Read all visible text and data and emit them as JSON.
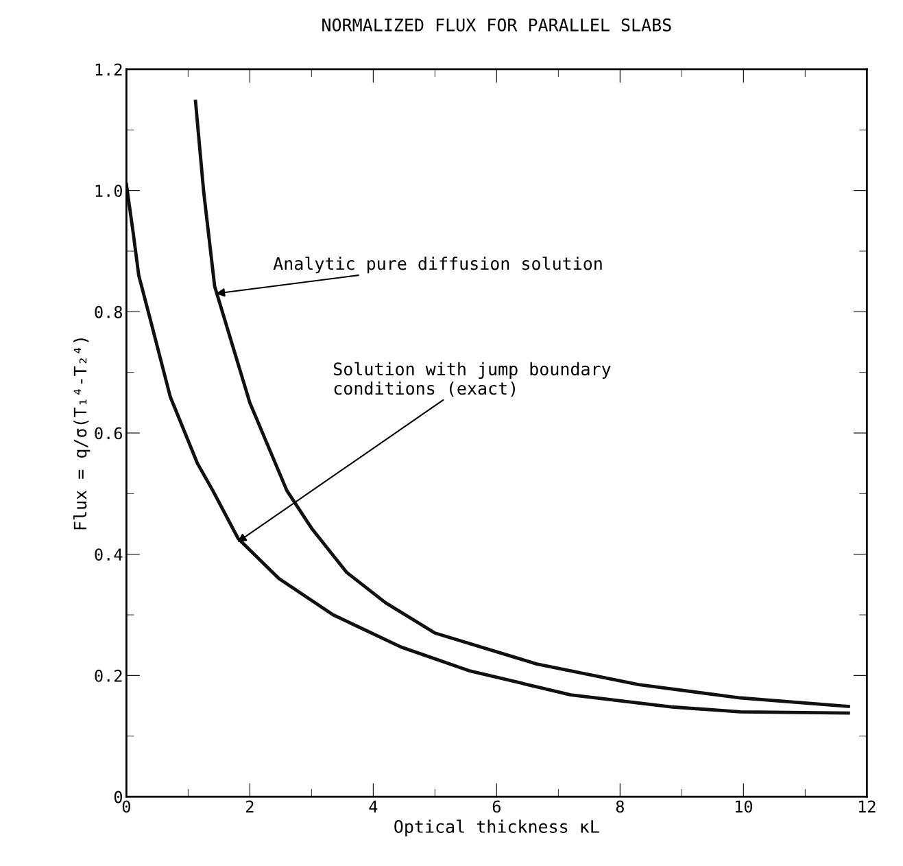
{
  "chart_data": {
    "type": "line",
    "title": "NORMALIZED FLUX FOR PARALLEL SLABS",
    "xlabel": "Optical thickness κL",
    "ylabel": "Flux = q/σ(T₁⁴-T₂⁴)",
    "xlim": [
      0,
      12
    ],
    "ylim": [
      0,
      1.2
    ],
    "xticks": [
      0,
      2,
      4,
      6,
      8,
      10,
      12
    ],
    "yticks": [
      0,
      0.2,
      0.4,
      0.6,
      0.8,
      {
        "value": 1.0,
        "label": "1.0"
      },
      1.2
    ],
    "grid": false,
    "legend": false,
    "marker": "none",
    "line_style": "solid",
    "series": [
      {
        "color": "#111111",
        "x": [
          1.12,
          1.25,
          1.43,
          2.0,
          2.6,
          3.0,
          3.57,
          4.2,
          5.0,
          6.65,
          8.3,
          9.95,
          11.7
        ],
        "values": [
          1.147,
          1.0,
          0.842,
          0.65,
          0.505,
          0.443,
          0.37,
          0.32,
          0.27,
          0.219,
          0.185,
          0.163,
          0.149
        ]
      },
      {
        "color": "#111111",
        "x": [
          0,
          0.11,
          0.2,
          0.38,
          0.71,
          1.15,
          1.4,
          1.81,
          2.47,
          3.35,
          4.45,
          5.55,
          7.2,
          8.85,
          9.95,
          11.7
        ],
        "values": [
          1.01,
          0.93,
          0.86,
          0.79,
          0.66,
          0.55,
          0.505,
          0.426,
          0.36,
          0.3,
          0.247,
          0.208,
          0.168,
          0.148,
          0.14,
          0.138
        ]
      }
    ],
    "annotations": [
      {
        "text": "Analytic pure diffusion solution",
        "x": 1.45,
        "y": 0.83
      },
      {
        "text": "Solution with jump boundary\nconditions (exact)",
        "x": 1.8,
        "y": 0.42
      }
    ]
  }
}
